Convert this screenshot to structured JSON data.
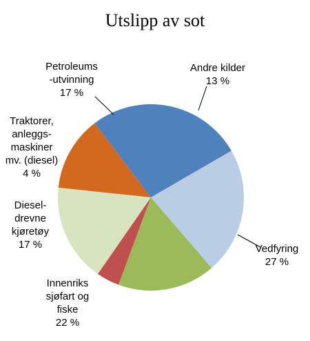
{
  "chart_data": {
    "type": "pie",
    "title": "Utslipp av sot",
    "slices": [
      {
        "label_lines": [
          "Andre kilder",
          "13 %"
        ],
        "value": 13,
        "color": "#d2691e"
      },
      {
        "label_lines": [
          "Vedfyring",
          "27 %"
        ],
        "value": 27,
        "color": "#4f81bd"
      },
      {
        "label_lines": [
          "Innenriks",
          "sjøfart og",
          "fiske",
          "22 %"
        ],
        "value": 22,
        "color": "#b9cde5"
      },
      {
        "label_lines": [
          "Diesel-",
          "drevne",
          "kjøretøy",
          "17 %"
        ],
        "value": 17,
        "color": "#9bbb59"
      },
      {
        "label_lines": [
          "Traktorer,",
          "anleggs-",
          "maskiner",
          "mv. (diesel)",
          "4 %"
        ],
        "value": 4,
        "color": "#c0504d"
      },
      {
        "label_lines": [
          "Petroleums",
          "-utvinning",
          "17 %"
        ],
        "value": 17,
        "color": "#d7e4bd"
      }
    ]
  }
}
